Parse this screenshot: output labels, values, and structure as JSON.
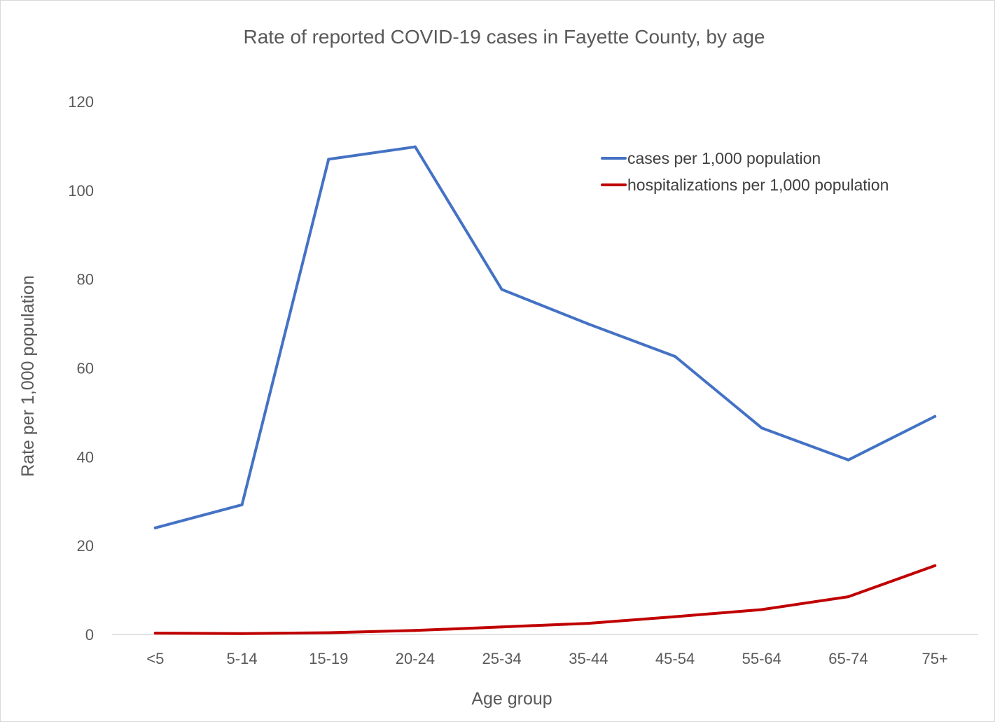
{
  "chart_data": {
    "type": "line",
    "title": "Rate of reported COVID-19 cases in Fayette County, by age",
    "xlabel": "Age group",
    "ylabel": "Rate per 1,000 population",
    "categories": [
      "<5",
      "5-14",
      "15-19",
      "20-24",
      "25-34",
      "35-44",
      "45-54",
      "55-64",
      "65-74",
      "75+"
    ],
    "ylim": [
      0,
      120
    ],
    "yticks": [
      "0",
      "20",
      "40",
      "60",
      "80",
      "100",
      "120"
    ],
    "grid": false,
    "legend_position": "top-right",
    "series": [
      {
        "name": "cases per 1,000 population",
        "color": "#4472C4",
        "values": [
          24.0,
          29.2,
          107.0,
          109.8,
          77.7,
          69.9,
          62.6,
          46.5,
          39.3,
          49.1
        ]
      },
      {
        "name": "hospitalizations per 1,000 population",
        "color": "#C00000",
        "values": [
          0.3,
          0.2,
          0.4,
          0.9,
          1.7,
          2.5,
          4.0,
          5.6,
          8.5,
          15.5
        ]
      }
    ]
  }
}
